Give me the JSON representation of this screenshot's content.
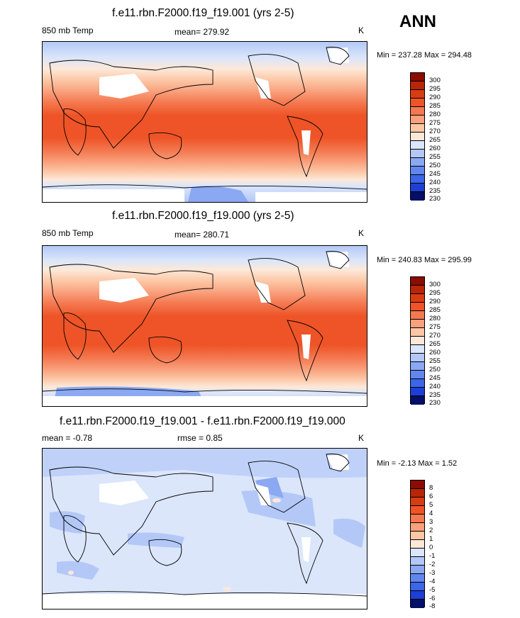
{
  "season": "ANN",
  "colors": {
    "levels13": [
      "#050f66",
      "#0a1fa3",
      "#1d3fd6",
      "#3c66e8",
      "#6187ee",
      "#8ba8f2",
      "#b3c8f7",
      "#dbe6fb",
      "#fde8d8",
      "#fcc7a6",
      "#f9a07c",
      "#f47850",
      "#ee5427",
      "#d83d12",
      "#b82508",
      "#8a0d00"
    ],
    "land_outline": "#000000",
    "mask": "#ffffff"
  },
  "panels": [
    {
      "title": "f.e11.rbn.F2000.f19_f19.001 (yrs 2-5)",
      "left_label": "850 mb Temp",
      "center_label": "mean= 279.92",
      "units": "K",
      "minmax": "Min = 237.28 Max = 294.48",
      "colorbar_labels": [
        "300",
        "295",
        "290",
        "285",
        "280",
        "275",
        "270",
        "265",
        "260",
        "255",
        "250",
        "245",
        "240",
        "235",
        "230"
      ]
    },
    {
      "title": "f.e11.rbn.F2000.f19_f19.000 (yrs 2-5)",
      "left_label": "850 mb Temp",
      "center_label": "mean= 280.71",
      "units": "K",
      "minmax": "Min = 240.83 Max = 295.99",
      "colorbar_labels": [
        "300",
        "295",
        "290",
        "285",
        "280",
        "275",
        "270",
        "265",
        "260",
        "255",
        "250",
        "245",
        "240",
        "235",
        "230"
      ]
    },
    {
      "title": "f.e11.rbn.F2000.f19_f19.001 - f.e11.rbn.F2000.f19_f19.000",
      "left_label": "mean =  -0.78",
      "center_label": "rmse =  0.85",
      "units": "K",
      "minmax": "Min =  -2.13 Max =   1.52",
      "colorbar_labels": [
        "8",
        "6",
        "5",
        "4",
        "3",
        "2",
        "1",
        "0",
        "-1",
        "-2",
        "-3",
        "-4",
        "-5",
        "-6",
        "-8"
      ]
    }
  ]
}
